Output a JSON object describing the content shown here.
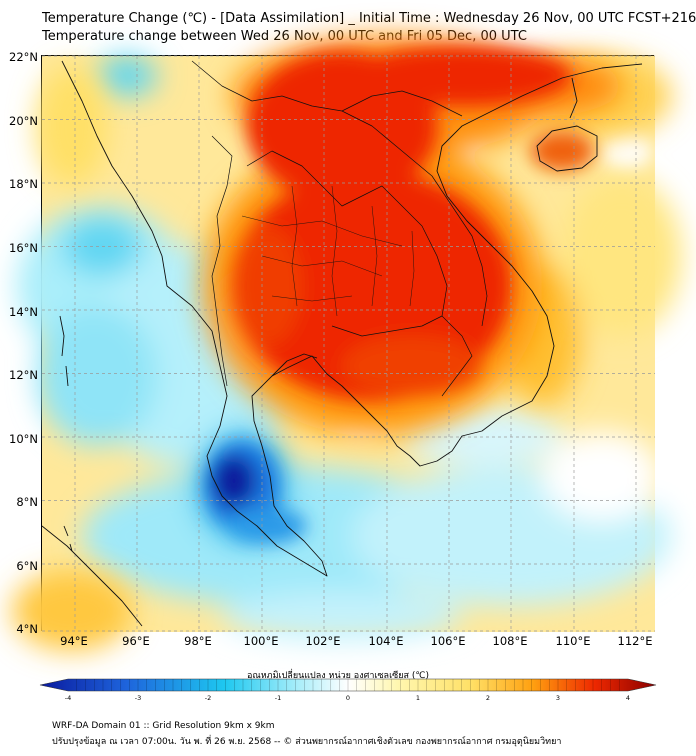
{
  "header": {
    "title_line1": "Temperature Change (℃) - [Data Assimilation] _ Initial Time : Wednesday 26 Nov, 00 UTC FCST+216",
    "title_line2": "Temperature change between Wed 26 Nov, 00 UTC and Fri 05 Dec, 00 UTC"
  },
  "map": {
    "lat_labels": [
      "22°N",
      "20°N",
      "18°N",
      "16°N",
      "14°N",
      "12°N",
      "10°N",
      "8°N",
      "6°N",
      "4°N"
    ],
    "lon_labels": [
      "94°E",
      "96°E",
      "98°E",
      "100°E",
      "102°E",
      "104°E",
      "106°E",
      "108°E",
      "110°E",
      "112°E"
    ]
  },
  "colorbar": {
    "title": "อุณหภูมิเปลี่ยนแปลง หน่วย องศาเซลเซียส (℃)",
    "ticks": [
      "-4",
      "-3",
      "-2",
      "-1",
      "0",
      "1",
      "2",
      "3",
      "4"
    ],
    "colors": {
      "deep_blue": "#0a1a9e",
      "blue": "#1e64dc",
      "cyan": "#1ec8f0",
      "light_cyan": "#aaeefa",
      "white": "#ffffff",
      "light_yellow": "#fff7b0",
      "yellow": "#ffe066",
      "orange": "#ffa010",
      "red": "#ee2800",
      "dark_red": "#8a0000"
    }
  },
  "footer": {
    "line1": "WRF-DA Domain 01 :: Grid Resolution 9km x 9km",
    "line2": "ปรับปรุงข้อมูล ณ เวลา 07:00น. วัน พ. ที่ 26 พ.ย. 2568 -- © ส่วนพยากรณ์อากาศเชิงตัวเลข กองพยากรณ์อากาศ กรมอุตุนิยมวิทยา"
  }
}
